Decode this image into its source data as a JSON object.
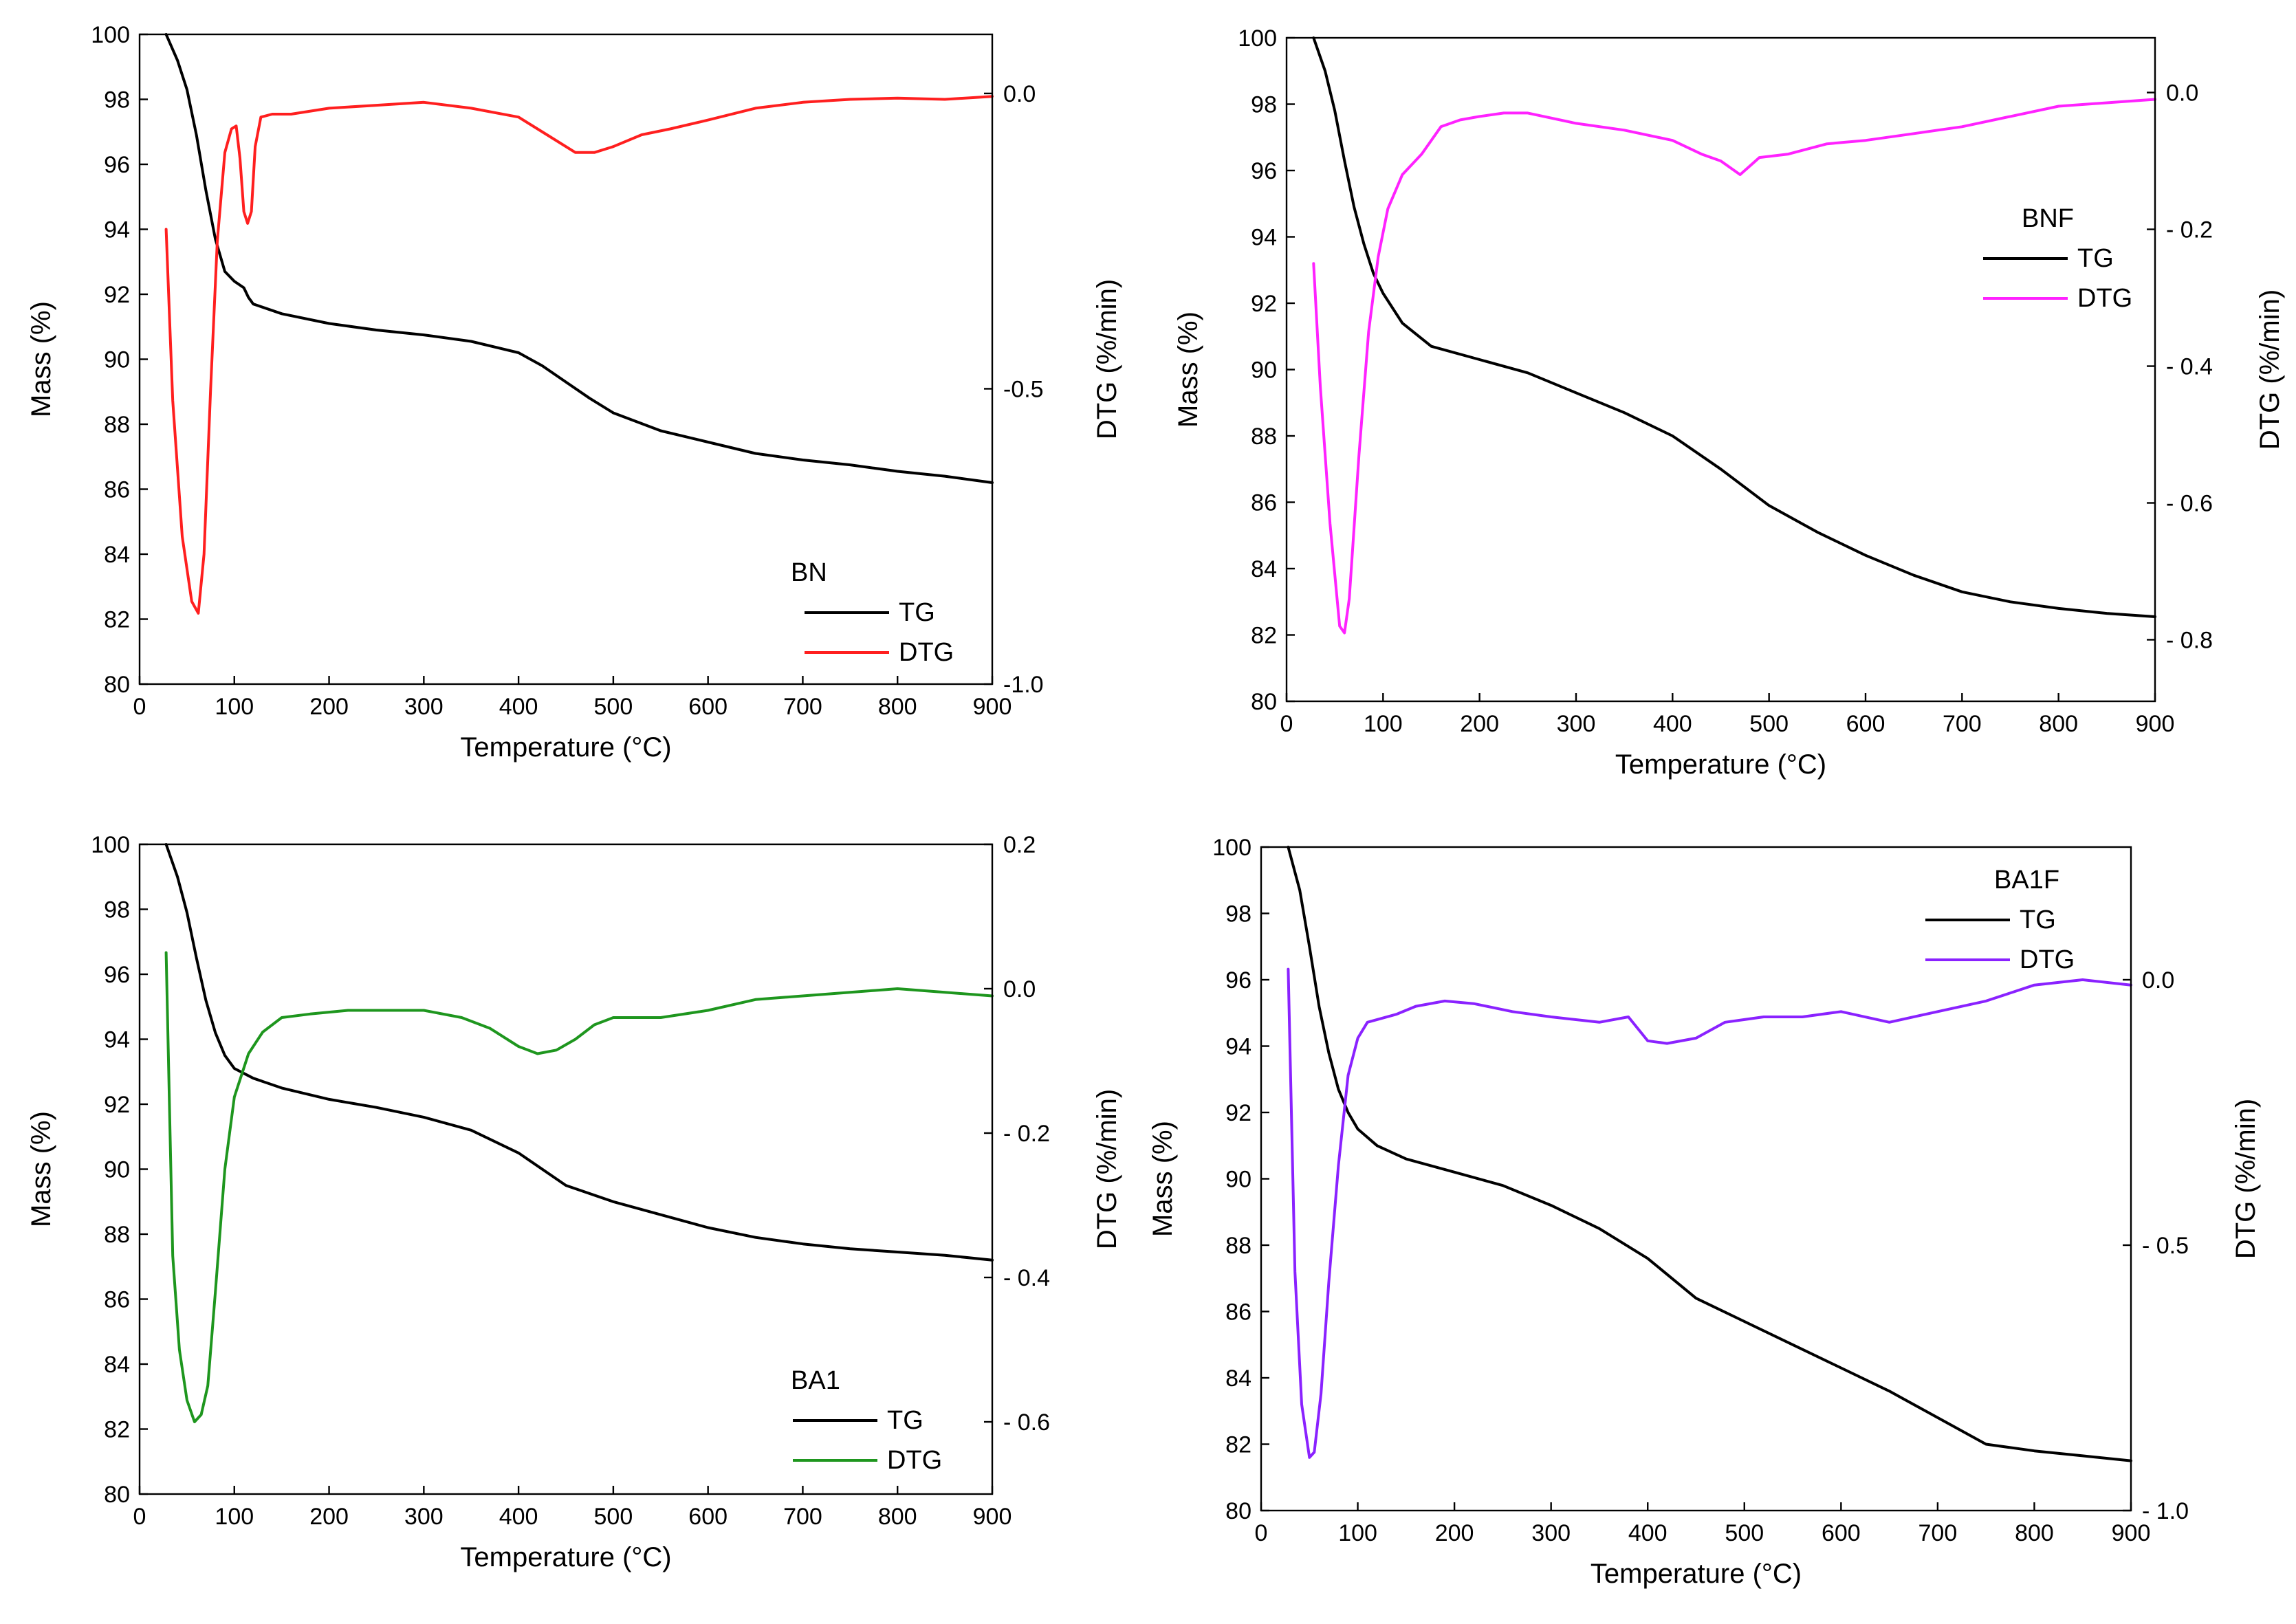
{
  "chart_data": [
    {
      "id": "bn",
      "type": "line",
      "legend": {
        "title": "BN",
        "placement": "bottom-right",
        "entries": [
          "TG",
          "DTG"
        ]
      },
      "xlabel": "Temperature (°C)",
      "ylabel": "Mass (%)",
      "y2label": "DTG (%/min)",
      "xlim": [
        0,
        900
      ],
      "ylim": [
        80,
        100
      ],
      "y2lim": [
        -1.0,
        0.1
      ],
      "xticks": [
        0,
        100,
        200,
        300,
        400,
        500,
        600,
        700,
        800,
        900
      ],
      "yticks": [
        80,
        82,
        84,
        86,
        88,
        90,
        92,
        94,
        96,
        98,
        100
      ],
      "y2ticks": [
        -1.0,
        -0.5,
        0.0
      ],
      "y2tick_labels": [
        "-1.0",
        "-0.5",
        "0.0"
      ],
      "series": [
        {
          "name": "TG",
          "axis": "left",
          "color": "#000000",
          "x": [
            28,
            40,
            50,
            60,
            70,
            80,
            90,
            100,
            110,
            115,
            120,
            125,
            150,
            200,
            250,
            300,
            350,
            400,
            425,
            450,
            475,
            500,
            550,
            600,
            650,
            700,
            750,
            800,
            850,
            900
          ],
          "y": [
            100,
            99.2,
            98.3,
            96.9,
            95.2,
            93.7,
            92.7,
            92.4,
            92.2,
            91.9,
            91.7,
            91.65,
            91.4,
            91.1,
            90.9,
            90.75,
            90.55,
            90.2,
            89.8,
            89.3,
            88.8,
            88.35,
            87.8,
            87.45,
            87.1,
            86.9,
            86.75,
            86.55,
            86.4,
            86.2
          ]
        },
        {
          "name": "DTG",
          "axis": "right",
          "color": "#ff1f1f",
          "x": [
            28,
            35,
            45,
            55,
            62,
            68,
            75,
            82,
            90,
            97,
            102,
            106,
            110,
            114,
            118,
            122,
            128,
            140,
            160,
            200,
            250,
            300,
            350,
            400,
            430,
            460,
            480,
            500,
            530,
            560,
            600,
            650,
            700,
            750,
            800,
            850,
            900
          ],
          "y": [
            -0.23,
            -0.52,
            -0.75,
            -0.86,
            -0.88,
            -0.78,
            -0.5,
            -0.25,
            -0.1,
            -0.06,
            -0.055,
            -0.11,
            -0.2,
            -0.22,
            -0.2,
            -0.09,
            -0.04,
            -0.035,
            -0.035,
            -0.025,
            -0.02,
            -0.015,
            -0.025,
            -0.04,
            -0.07,
            -0.1,
            -0.1,
            -0.09,
            -0.07,
            -0.06,
            -0.045,
            -0.025,
            -0.015,
            -0.01,
            -0.008,
            -0.01,
            -0.005
          ]
        }
      ]
    },
    {
      "id": "bnf",
      "type": "line",
      "legend": {
        "title": "BNF",
        "placement": "top-right",
        "entries": [
          "TG",
          "DTG"
        ]
      },
      "xlabel": "Temperature (°C)",
      "ylabel": "Mass (%)",
      "y2label": "DTG (%/min)",
      "xlim": [
        0,
        900
      ],
      "ylim": [
        80,
        100
      ],
      "y2lim": [
        -0.89,
        0.08
      ],
      "xticks": [
        0,
        100,
        200,
        300,
        400,
        500,
        600,
        700,
        800,
        900
      ],
      "yticks": [
        80,
        82,
        84,
        86,
        88,
        90,
        92,
        94,
        96,
        98,
        100
      ],
      "y2ticks": [
        -0.8,
        -0.6,
        -0.4,
        -0.2,
        0.0
      ],
      "y2tick_labels": [
        "- 0.8",
        "- 0.6",
        "- 0.4",
        "- 0.2",
        "0.0"
      ],
      "series": [
        {
          "name": "TG",
          "axis": "left",
          "color": "#000000",
          "x": [
            28,
            40,
            50,
            60,
            70,
            80,
            90,
            100,
            120,
            150,
            200,
            250,
            300,
            350,
            400,
            450,
            500,
            550,
            600,
            650,
            700,
            750,
            800,
            850,
            900
          ],
          "y": [
            100,
            99.0,
            97.8,
            96.3,
            94.9,
            93.8,
            92.9,
            92.3,
            91.4,
            90.7,
            90.3,
            89.9,
            89.3,
            88.7,
            88.0,
            87.0,
            85.9,
            85.1,
            84.4,
            83.8,
            83.3,
            83.0,
            82.8,
            82.65,
            82.55
          ]
        },
        {
          "name": "DTG",
          "axis": "right",
          "color": "#ff22ff",
          "x": [
            28,
            35,
            45,
            55,
            60,
            65,
            75,
            85,
            95,
            105,
            120,
            140,
            160,
            180,
            200,
            225,
            250,
            300,
            350,
            400,
            430,
            450,
            470,
            490,
            520,
            560,
            600,
            650,
            700,
            750,
            800,
            850,
            900
          ],
          "y": [
            -0.25,
            -0.43,
            -0.63,
            -0.78,
            -0.79,
            -0.74,
            -0.53,
            -0.35,
            -0.24,
            -0.17,
            -0.12,
            -0.09,
            -0.05,
            -0.04,
            -0.035,
            -0.03,
            -0.03,
            -0.045,
            -0.055,
            -0.07,
            -0.09,
            -0.1,
            -0.12,
            -0.095,
            -0.09,
            -0.075,
            -0.07,
            -0.06,
            -0.05,
            -0.035,
            -0.02,
            -0.015,
            -0.01
          ]
        }
      ]
    },
    {
      "id": "ba1",
      "type": "line",
      "legend": {
        "title": "BA1",
        "placement": "bottom-right",
        "entries": [
          "TG",
          "DTG"
        ]
      },
      "xlabel": "Temperature (°C)",
      "ylabel": "Mass (%)",
      "y2label": "DTG (%/min)",
      "xlim": [
        0,
        900
      ],
      "ylim": [
        80,
        100
      ],
      "y2lim": [
        -0.7,
        0.2
      ],
      "xticks": [
        0,
        100,
        200,
        300,
        400,
        500,
        600,
        700,
        800,
        900
      ],
      "yticks": [
        80,
        82,
        84,
        86,
        88,
        90,
        92,
        94,
        96,
        98,
        100
      ],
      "y2ticks": [
        -0.6,
        -0.4,
        -0.2,
        0.0,
        0.2
      ],
      "y2tick_labels": [
        "- 0.6",
        "- 0.4",
        "- 0.2",
        "0.0",
        "0.2"
      ],
      "series": [
        {
          "name": "TG",
          "axis": "left",
          "color": "#000000",
          "x": [
            28,
            40,
            50,
            60,
            70,
            80,
            90,
            100,
            120,
            150,
            200,
            250,
            300,
            350,
            400,
            450,
            500,
            550,
            600,
            650,
            700,
            750,
            800,
            850,
            900
          ],
          "y": [
            100,
            99.0,
            97.9,
            96.5,
            95.2,
            94.2,
            93.5,
            93.1,
            92.8,
            92.5,
            92.15,
            91.9,
            91.6,
            91.2,
            90.5,
            89.5,
            89.0,
            88.6,
            88.2,
            87.9,
            87.7,
            87.55,
            87.45,
            87.35,
            87.2
          ]
        },
        {
          "name": "DTG",
          "axis": "right",
          "color": "#1e961e",
          "x": [
            28,
            35,
            42,
            50,
            58,
            65,
            72,
            80,
            90,
            100,
            115,
            130,
            150,
            180,
            220,
            260,
            300,
            340,
            370,
            400,
            420,
            440,
            460,
            480,
            500,
            550,
            600,
            650,
            700,
            750,
            800,
            850,
            900
          ],
          "y": [
            0.05,
            -0.37,
            -0.5,
            -0.57,
            -0.6,
            -0.59,
            -0.55,
            -0.42,
            -0.25,
            -0.15,
            -0.09,
            -0.06,
            -0.04,
            -0.035,
            -0.03,
            -0.03,
            -0.03,
            -0.04,
            -0.055,
            -0.08,
            -0.09,
            -0.085,
            -0.07,
            -0.05,
            -0.04,
            -0.04,
            -0.03,
            -0.015,
            -0.01,
            -0.005,
            0.0,
            -0.005,
            -0.01
          ]
        }
      ]
    },
    {
      "id": "ba1f",
      "type": "line",
      "legend": {
        "title": "BA1F",
        "placement": "top-right",
        "entries": [
          "TG",
          "DTG"
        ]
      },
      "xlabel": "Temperature (°C)",
      "ylabel": "Mass (%)",
      "y2label": "DTG (%/min)",
      "xlim": [
        0,
        900
      ],
      "ylim": [
        80,
        100
      ],
      "y2lim": [
        -1.0,
        0.25
      ],
      "xticks": [
        0,
        100,
        200,
        300,
        400,
        500,
        600,
        700,
        800,
        900
      ],
      "yticks": [
        80,
        82,
        84,
        86,
        88,
        90,
        92,
        94,
        96,
        98,
        100
      ],
      "y2ticks": [
        -1.0,
        -0.5,
        0.0
      ],
      "y2tick_labels": [
        "- 1.0",
        "- 0.5",
        "0.0"
      ],
      "series": [
        {
          "name": "TG",
          "axis": "left",
          "color": "#000000",
          "x": [
            28,
            40,
            50,
            60,
            70,
            80,
            90,
            100,
            120,
            150,
            200,
            250,
            300,
            350,
            400,
            450,
            500,
            550,
            600,
            650,
            700,
            750,
            800,
            850,
            900
          ],
          "y": [
            100,
            98.7,
            97.0,
            95.2,
            93.8,
            92.7,
            92.0,
            91.5,
            91.0,
            90.6,
            90.2,
            89.8,
            89.2,
            88.5,
            87.6,
            86.4,
            85.7,
            85.0,
            84.3,
            83.6,
            82.8,
            82.0,
            81.8,
            81.65,
            81.5
          ]
        },
        {
          "name": "DTG",
          "axis": "right",
          "color": "#8a22ff",
          "x": [
            28,
            35,
            42,
            50,
            55,
            62,
            70,
            80,
            90,
            100,
            110,
            120,
            140,
            160,
            190,
            220,
            260,
            300,
            350,
            380,
            400,
            420,
            450,
            480,
            520,
            560,
            600,
            650,
            700,
            750,
            800,
            850,
            900
          ],
          "y": [
            0.02,
            -0.55,
            -0.8,
            -0.9,
            -0.89,
            -0.78,
            -0.57,
            -0.35,
            -0.18,
            -0.11,
            -0.08,
            -0.075,
            -0.065,
            -0.05,
            -0.04,
            -0.045,
            -0.06,
            -0.07,
            -0.08,
            -0.07,
            -0.115,
            -0.12,
            -0.11,
            -0.08,
            -0.07,
            -0.07,
            -0.06,
            -0.08,
            -0.06,
            -0.04,
            -0.01,
            0.0,
            -0.01
          ]
        }
      ]
    }
  ]
}
